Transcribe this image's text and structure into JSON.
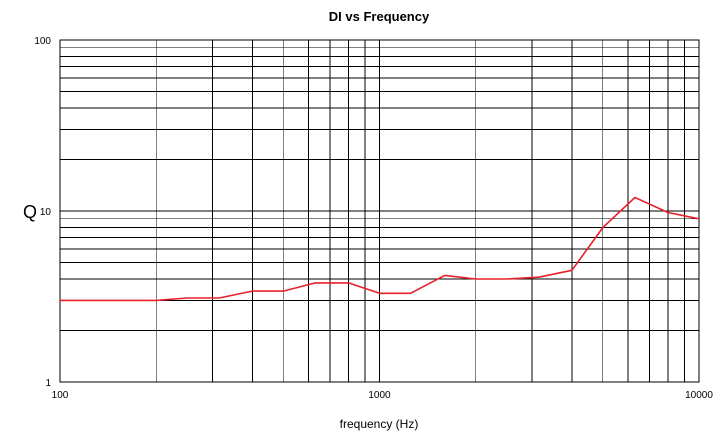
{
  "chart_data": {
    "type": "line",
    "title": "DI vs Frequency",
    "xlabel": "frequency (Hz)",
    "ylabel": "Q",
    "x_scale": "log",
    "y_scale": "log",
    "xlim": [
      100,
      10000
    ],
    "ylim": [
      1,
      100
    ],
    "grid": true,
    "x_ticks": [
      100,
      1000,
      10000
    ],
    "x_tick_labels": [
      "100",
      "1000",
      "10000"
    ],
    "y_ticks": [
      1,
      10,
      100
    ],
    "y_tick_labels": [
      "1",
      "10",
      "100"
    ],
    "series": [
      {
        "color": "#e8202a",
        "x": [
          100,
          125,
          160,
          200,
          250,
          315,
          400,
          500,
          630,
          800,
          1000,
          1250,
          1600,
          2000,
          2500,
          3150,
          4000,
          5000,
          6300,
          8000,
          10000
        ],
        "y": [
          3.0,
          3.0,
          3.0,
          3.0,
          3.1,
          3.1,
          3.4,
          3.4,
          3.8,
          3.8,
          3.3,
          3.3,
          4.2,
          4.0,
          4.0,
          4.1,
          4.5,
          8.0,
          12.0,
          9.8,
          9.0
        ]
      }
    ]
  }
}
